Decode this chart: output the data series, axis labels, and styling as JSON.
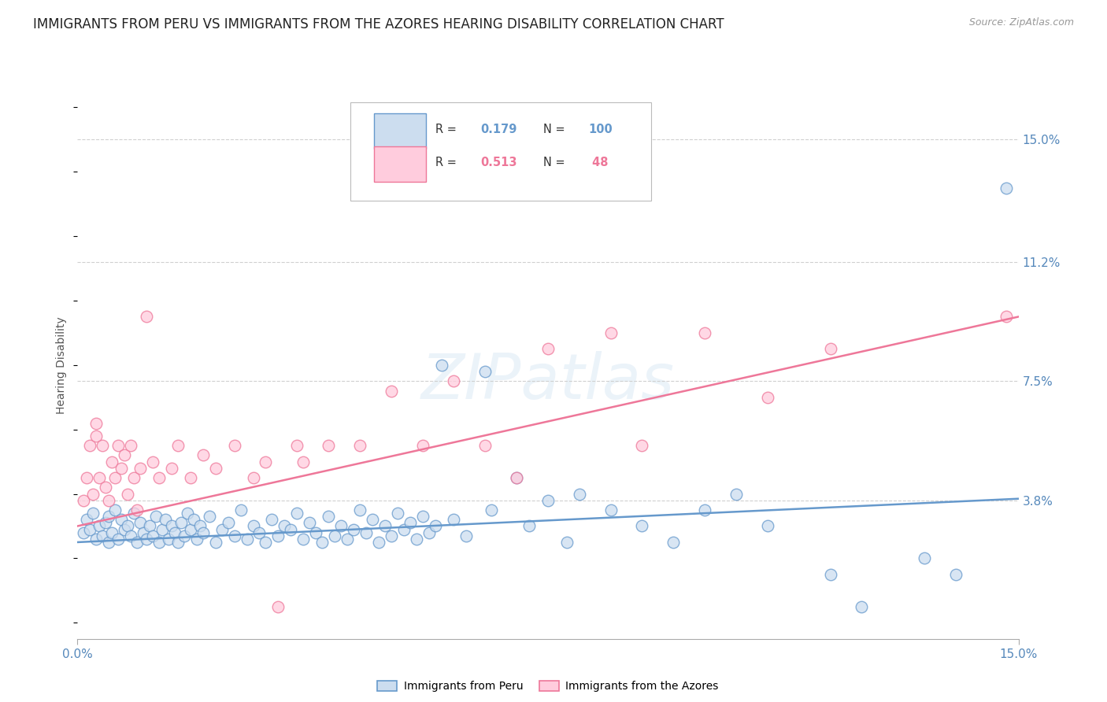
{
  "title": "IMMIGRANTS FROM PERU VS IMMIGRANTS FROM THE AZORES HEARING DISABILITY CORRELATION CHART",
  "source": "Source: ZipAtlas.com",
  "ylabel": "Hearing Disability",
  "xlim": [
    0.0,
    15.0
  ],
  "ylim": [
    -0.5,
    16.5
  ],
  "ytick_values": [
    3.8,
    7.5,
    11.2,
    15.0
  ],
  "ytick_labels": [
    "3.8%",
    "7.5%",
    "11.2%",
    "15.0%"
  ],
  "xtick_values": [
    0.0,
    15.0
  ],
  "xtick_labels": [
    "0.0%",
    "15.0%"
  ],
  "grid_color": "#d0d0d0",
  "background_color": "#ffffff",
  "peru_color": "#6699cc",
  "azores_color": "#ee7799",
  "peru_R": 0.179,
  "peru_N": 100,
  "azores_R": 0.513,
  "azores_N": 48,
  "legend_label_peru": "Immigrants from Peru",
  "legend_label_azores": "Immigrants from the Azores",
  "peru_scatter": [
    [
      0.1,
      2.8
    ],
    [
      0.15,
      3.2
    ],
    [
      0.2,
      2.9
    ],
    [
      0.25,
      3.4
    ],
    [
      0.3,
      2.6
    ],
    [
      0.35,
      3.0
    ],
    [
      0.4,
      2.7
    ],
    [
      0.45,
      3.1
    ],
    [
      0.5,
      2.5
    ],
    [
      0.5,
      3.3
    ],
    [
      0.55,
      2.8
    ],
    [
      0.6,
      3.5
    ],
    [
      0.65,
      2.6
    ],
    [
      0.7,
      3.2
    ],
    [
      0.75,
      2.9
    ],
    [
      0.8,
      3.0
    ],
    [
      0.85,
      2.7
    ],
    [
      0.9,
      3.4
    ],
    [
      0.95,
      2.5
    ],
    [
      1.0,
      3.1
    ],
    [
      1.05,
      2.8
    ],
    [
      1.1,
      2.6
    ],
    [
      1.15,
      3.0
    ],
    [
      1.2,
      2.7
    ],
    [
      1.25,
      3.3
    ],
    [
      1.3,
      2.5
    ],
    [
      1.35,
      2.9
    ],
    [
      1.4,
      3.2
    ],
    [
      1.45,
      2.6
    ],
    [
      1.5,
      3.0
    ],
    [
      1.55,
      2.8
    ],
    [
      1.6,
      2.5
    ],
    [
      1.65,
      3.1
    ],
    [
      1.7,
      2.7
    ],
    [
      1.75,
      3.4
    ],
    [
      1.8,
      2.9
    ],
    [
      1.85,
      3.2
    ],
    [
      1.9,
      2.6
    ],
    [
      1.95,
      3.0
    ],
    [
      2.0,
      2.8
    ],
    [
      2.1,
      3.3
    ],
    [
      2.2,
      2.5
    ],
    [
      2.3,
      2.9
    ],
    [
      2.4,
      3.1
    ],
    [
      2.5,
      2.7
    ],
    [
      2.6,
      3.5
    ],
    [
      2.7,
      2.6
    ],
    [
      2.8,
      3.0
    ],
    [
      2.9,
      2.8
    ],
    [
      3.0,
      2.5
    ],
    [
      3.1,
      3.2
    ],
    [
      3.2,
      2.7
    ],
    [
      3.3,
      3.0
    ],
    [
      3.4,
      2.9
    ],
    [
      3.5,
      3.4
    ],
    [
      3.6,
      2.6
    ],
    [
      3.7,
      3.1
    ],
    [
      3.8,
      2.8
    ],
    [
      3.9,
      2.5
    ],
    [
      4.0,
      3.3
    ],
    [
      4.1,
      2.7
    ],
    [
      4.2,
      3.0
    ],
    [
      4.3,
      2.6
    ],
    [
      4.4,
      2.9
    ],
    [
      4.5,
      3.5
    ],
    [
      4.6,
      2.8
    ],
    [
      4.7,
      3.2
    ],
    [
      4.8,
      2.5
    ],
    [
      4.9,
      3.0
    ],
    [
      5.0,
      2.7
    ],
    [
      5.1,
      3.4
    ],
    [
      5.2,
      2.9
    ],
    [
      5.3,
      3.1
    ],
    [
      5.4,
      2.6
    ],
    [
      5.5,
      3.3
    ],
    [
      5.6,
      2.8
    ],
    [
      5.7,
      3.0
    ],
    [
      5.8,
      8.0
    ],
    [
      6.0,
      3.2
    ],
    [
      6.2,
      2.7
    ],
    [
      6.5,
      7.8
    ],
    [
      6.6,
      3.5
    ],
    [
      7.0,
      4.5
    ],
    [
      7.2,
      3.0
    ],
    [
      7.5,
      3.8
    ],
    [
      7.8,
      2.5
    ],
    [
      8.0,
      4.0
    ],
    [
      8.5,
      3.5
    ],
    [
      9.0,
      3.0
    ],
    [
      9.5,
      2.5
    ],
    [
      10.0,
      3.5
    ],
    [
      10.5,
      4.0
    ],
    [
      11.0,
      3.0
    ],
    [
      12.0,
      1.5
    ],
    [
      12.5,
      0.5
    ],
    [
      13.5,
      2.0
    ],
    [
      14.0,
      1.5
    ],
    [
      14.8,
      13.5
    ]
  ],
  "azores_scatter": [
    [
      0.1,
      3.8
    ],
    [
      0.15,
      4.5
    ],
    [
      0.2,
      5.5
    ],
    [
      0.25,
      4.0
    ],
    [
      0.3,
      5.8
    ],
    [
      0.3,
      6.2
    ],
    [
      0.35,
      4.5
    ],
    [
      0.4,
      5.5
    ],
    [
      0.45,
      4.2
    ],
    [
      0.5,
      3.8
    ],
    [
      0.55,
      5.0
    ],
    [
      0.6,
      4.5
    ],
    [
      0.65,
      5.5
    ],
    [
      0.7,
      4.8
    ],
    [
      0.75,
      5.2
    ],
    [
      0.8,
      4.0
    ],
    [
      0.85,
      5.5
    ],
    [
      0.9,
      4.5
    ],
    [
      0.95,
      3.5
    ],
    [
      1.0,
      4.8
    ],
    [
      1.1,
      9.5
    ],
    [
      1.2,
      5.0
    ],
    [
      1.3,
      4.5
    ],
    [
      1.5,
      4.8
    ],
    [
      1.6,
      5.5
    ],
    [
      1.8,
      4.5
    ],
    [
      2.0,
      5.2
    ],
    [
      2.2,
      4.8
    ],
    [
      2.5,
      5.5
    ],
    [
      2.8,
      4.5
    ],
    [
      3.0,
      5.0
    ],
    [
      3.2,
      0.5
    ],
    [
      3.5,
      5.5
    ],
    [
      3.6,
      5.0
    ],
    [
      4.0,
      5.5
    ],
    [
      4.5,
      5.5
    ],
    [
      5.0,
      7.2
    ],
    [
      5.5,
      5.5
    ],
    [
      6.0,
      7.5
    ],
    [
      6.5,
      5.5
    ],
    [
      7.0,
      4.5
    ],
    [
      7.5,
      8.5
    ],
    [
      8.5,
      9.0
    ],
    [
      9.0,
      5.5
    ],
    [
      10.0,
      9.0
    ],
    [
      11.0,
      7.0
    ],
    [
      12.0,
      8.5
    ],
    [
      14.8,
      9.5
    ]
  ],
  "peru_line": [
    [
      0.0,
      2.5
    ],
    [
      15.0,
      3.85
    ]
  ],
  "azores_line": [
    [
      0.0,
      3.0
    ],
    [
      15.0,
      9.5
    ]
  ],
  "watermark": "ZIPatlas",
  "title_fontsize": 12,
  "source_fontsize": 9,
  "ytick_color": "#5588bb",
  "xtick_color": "#5588bb"
}
